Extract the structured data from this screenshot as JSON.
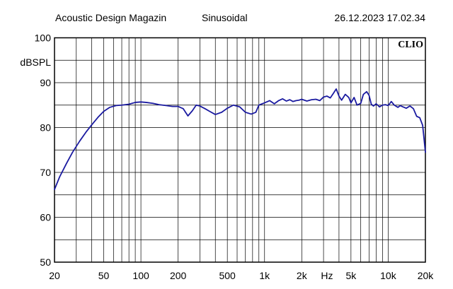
{
  "header": {
    "title": "Acoustic Design Magazin",
    "mode": "Sinusoidal",
    "datetime": "26.12.2023 17.02.34"
  },
  "brand": "CLIO",
  "colors": {
    "curve": "#1a1aa0",
    "grid": "#000000",
    "background": "#ffffff"
  },
  "chart_data": {
    "type": "line",
    "title": "",
    "xlabel": "Hz",
    "ylabel": "dBSPL",
    "xscale": "log",
    "xlim": [
      20,
      20000
    ],
    "ylim": [
      50,
      100
    ],
    "grid": true,
    "y_ticks": [
      "50",
      "60",
      "70",
      "80",
      "90",
      "100"
    ],
    "x_ticks": [
      {
        "value": 20,
        "label": "20"
      },
      {
        "value": 50,
        "label": "50"
      },
      {
        "value": 100,
        "label": "100"
      },
      {
        "value": 200,
        "label": "200"
      },
      {
        "value": 500,
        "label": "500"
      },
      {
        "value": 1000,
        "label": "1k"
      },
      {
        "value": 2000,
        "label": "2k"
      },
      {
        "value": 5000,
        "label": "5k"
      },
      {
        "value": 10000,
        "label": "10k"
      },
      {
        "value": 20000,
        "label": "20k"
      }
    ],
    "series": [
      {
        "x": [
          20,
          22,
          25,
          28,
          32,
          36,
          40,
          45,
          50,
          56,
          63,
          70,
          80,
          90,
          100,
          110,
          125,
          140,
          160,
          180,
          200,
          220,
          240,
          260,
          280,
          300,
          330,
          360,
          400,
          450,
          500,
          560,
          630,
          700,
          780,
          850,
          900,
          1000,
          1100,
          1200,
          1300,
          1400,
          1500,
          1600,
          1700,
          1800,
          1900,
          2000,
          2200,
          2400,
          2600,
          2800,
          3000,
          3200,
          3400,
          3600,
          3800,
          4000,
          4200,
          4500,
          4800,
          5000,
          5300,
          5600,
          6000,
          6300,
          6700,
          7000,
          7300,
          7600,
          8000,
          8500,
          9000,
          9500,
          10000,
          10600,
          11200,
          12000,
          12500,
          13200,
          14000,
          15000,
          16000,
          17000,
          18000,
          19000,
          19500,
          20000
        ],
        "y": [
          66.2,
          69.0,
          72.0,
          74.5,
          77.0,
          79.0,
          80.6,
          82.3,
          83.6,
          84.5,
          84.9,
          85.0,
          85.2,
          85.6,
          85.7,
          85.6,
          85.4,
          85.1,
          84.9,
          84.7,
          84.7,
          84.2,
          82.6,
          83.7,
          85.0,
          84.8,
          84.2,
          83.6,
          82.9,
          83.4,
          84.3,
          85.0,
          84.6,
          83.4,
          83.0,
          83.4,
          85.0,
          85.5,
          86.0,
          85.3,
          86.0,
          86.4,
          85.9,
          86.2,
          85.8,
          86.0,
          86.1,
          86.3,
          85.9,
          86.2,
          86.3,
          86.0,
          86.8,
          87.0,
          86.6,
          87.6,
          88.6,
          87.0,
          86.1,
          87.4,
          86.7,
          85.5,
          86.7,
          85.0,
          85.4,
          87.4,
          88.0,
          87.2,
          85.2,
          84.8,
          85.3,
          84.6,
          85.0,
          85.1,
          84.9,
          85.8,
          85.0,
          84.5,
          84.9,
          84.6,
          84.3,
          84.8,
          84.2,
          82.5,
          82.2,
          80.5,
          77.5,
          74.5
        ]
      }
    ]
  }
}
